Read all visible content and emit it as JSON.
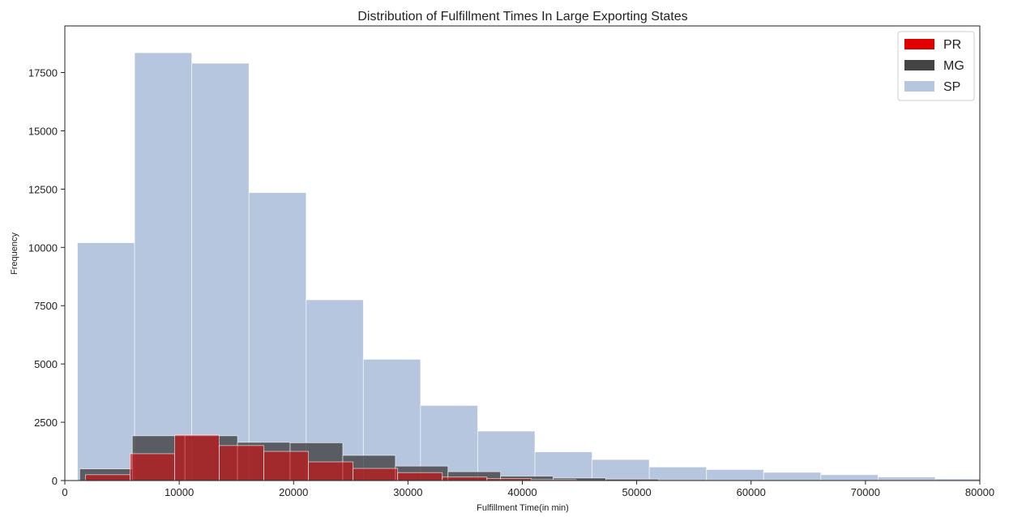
{
  "chart_data": {
    "type": "bar",
    "title": "Distribution of Fulfillment Times In Large Exporting States",
    "xlabel": "Fulfillment Time(in min)",
    "ylabel": "Frequency",
    "xlim": [
      0,
      80000
    ],
    "ylim": [
      0,
      19500
    ],
    "xticks": [
      0,
      10000,
      20000,
      30000,
      40000,
      50000,
      60000,
      70000,
      80000
    ],
    "xtick_labels": [
      "0",
      "10000",
      "20000",
      "30000",
      "40000",
      "50000",
      "60000",
      "70000",
      "80000"
    ],
    "yticks": [
      0,
      2500,
      5000,
      7500,
      10000,
      12500,
      15000,
      17500
    ],
    "ytick_labels": [
      "0",
      "2500",
      "5000",
      "7500",
      "10000",
      "12500",
      "15000",
      "17500"
    ],
    "grid": false,
    "legend": "top-right",
    "series": [
      {
        "name": "SP",
        "color": "#b7c6df",
        "bin_edges": [
          1100,
          6100,
          11100,
          16100,
          21100,
          26100,
          31100,
          36100,
          41100,
          46100,
          51100,
          56100,
          61100,
          66100,
          71100,
          76100,
          81100
        ],
        "values": [
          10200,
          18350,
          17900,
          12350,
          7750,
          5200,
          3220,
          2120,
          1230,
          900,
          580,
          470,
          350,
          250,
          150,
          70
        ]
      },
      {
        "name": "MG",
        "color": "#3a3a3a",
        "bin_edges": [
          1300,
          5900,
          10500,
          15100,
          19700,
          24300,
          28900,
          33500,
          38100,
          42700,
          47300,
          51900
        ],
        "values": [
          500,
          1920,
          1920,
          1640,
          1620,
          1080,
          620,
          380,
          190,
          110,
          60
        ]
      },
      {
        "name": "PR",
        "color": "#e00000",
        "bin_edges": [
          1800,
          5700,
          9600,
          13500,
          17400,
          21300,
          25200,
          29100,
          33000,
          36900,
          40800,
          44700
        ],
        "values": [
          250,
          1150,
          1950,
          1500,
          1250,
          800,
          520,
          340,
          150,
          80,
          40
        ]
      }
    ]
  }
}
